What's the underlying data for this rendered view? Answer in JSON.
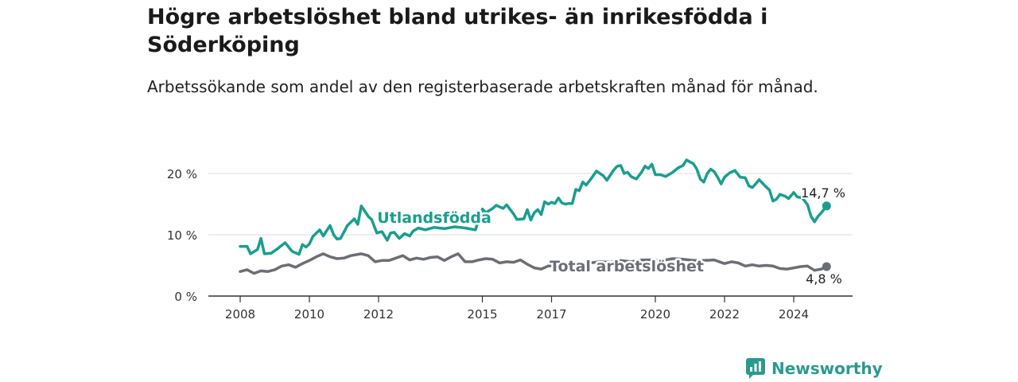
{
  "header": {
    "title": "Högre arbetslöshet bland utrikes- än inrikesfödda i Söderköping",
    "subtitle": "Arbetssökande som andel av den registerbaserade arbetskraften månad för månad."
  },
  "brand": {
    "name": "Newsworthy",
    "icon": "newsworthy-logo-icon",
    "color": "#2b9a8e"
  },
  "chart_data": {
    "type": "line",
    "title": "Högre arbetslöshet bland utrikes- än inrikesfödda i Söderköping",
    "subtitle": "Arbetssökande som andel av den registerbaserade arbetskraften månad för månad.",
    "xlabel": "",
    "ylabel": "",
    "xlim": [
      2008.0,
      2025.6
    ],
    "ylim": [
      0,
      22
    ],
    "x_ticks": [
      2008,
      2010,
      2012,
      2015,
      2017,
      2020,
      2022,
      2024
    ],
    "x_tick_labels": [
      "2008",
      "2010",
      "2012",
      "2015",
      "2017",
      "2020",
      "2022",
      "2024"
    ],
    "y_ticks": [
      0,
      10,
      20
    ],
    "y_tick_labels": [
      "0 %",
      "10 %",
      "20 %"
    ],
    "grid": "horizontal",
    "series": [
      {
        "name": "Utlandsfödda",
        "color": "#1a9e8f",
        "end_label": "14,7 %",
        "points": [
          [
            2008.0,
            8.1
          ],
          [
            2008.2,
            8.1
          ],
          [
            2008.3,
            6.9
          ],
          [
            2008.5,
            7.6
          ],
          [
            2008.6,
            9.4
          ],
          [
            2008.7,
            6.9
          ],
          [
            2008.9,
            7.0
          ],
          [
            2009.1,
            7.8
          ],
          [
            2009.3,
            8.7
          ],
          [
            2009.5,
            7.3
          ],
          [
            2009.7,
            6.8
          ],
          [
            2009.8,
            8.4
          ],
          [
            2009.9,
            8.0
          ],
          [
            2010.0,
            8.5
          ],
          [
            2010.1,
            9.7
          ],
          [
            2010.3,
            10.8
          ],
          [
            2010.4,
            9.8
          ],
          [
            2010.6,
            11.5
          ],
          [
            2010.7,
            10.0
          ],
          [
            2010.8,
            9.3
          ],
          [
            2010.9,
            9.4
          ],
          [
            2011.1,
            11.5
          ],
          [
            2011.3,
            12.6
          ],
          [
            2011.4,
            11.7
          ],
          [
            2011.5,
            14.7
          ],
          [
            2011.7,
            13.0
          ],
          [
            2011.8,
            12.5
          ],
          [
            2011.95,
            10.3
          ],
          [
            2012.1,
            10.5
          ],
          [
            2012.25,
            9.1
          ],
          [
            2012.35,
            10.3
          ],
          [
            2012.45,
            10.4
          ],
          [
            2012.6,
            9.4
          ],
          [
            2012.75,
            10.2
          ],
          [
            2012.9,
            9.8
          ],
          [
            2013.0,
            10.6
          ],
          [
            2013.15,
            11.1
          ],
          [
            2013.35,
            10.8
          ],
          [
            2013.6,
            11.2
          ],
          [
            2013.9,
            11.0
          ],
          [
            2014.2,
            11.3
          ],
          [
            2014.5,
            11.1
          ],
          [
            2014.8,
            10.8
          ],
          [
            2015.0,
            14.2
          ],
          [
            2015.1,
            13.6
          ],
          [
            2015.3,
            14.3
          ],
          [
            2015.4,
            14.8
          ],
          [
            2015.6,
            14.3
          ],
          [
            2015.7,
            14.9
          ],
          [
            2015.9,
            13.4
          ],
          [
            2016.0,
            12.5
          ],
          [
            2016.2,
            12.6
          ],
          [
            2016.3,
            14.1
          ],
          [
            2016.4,
            12.4
          ],
          [
            2016.5,
            13.6
          ],
          [
            2016.6,
            14.1
          ],
          [
            2016.7,
            13.3
          ],
          [
            2016.8,
            15.4
          ],
          [
            2016.9,
            15.0
          ],
          [
            2017.0,
            15.3
          ],
          [
            2017.1,
            15.1
          ],
          [
            2017.2,
            16.0
          ],
          [
            2017.3,
            15.2
          ],
          [
            2017.4,
            15.0
          ],
          [
            2017.5,
            15.1
          ],
          [
            2017.6,
            15.1
          ],
          [
            2017.7,
            17.4
          ],
          [
            2017.8,
            17.2
          ],
          [
            2017.9,
            18.6
          ],
          [
            2018.0,
            18.1
          ],
          [
            2018.15,
            19.2
          ],
          [
            2018.3,
            20.4
          ],
          [
            2018.5,
            19.6
          ],
          [
            2018.6,
            18.9
          ],
          [
            2018.8,
            20.6
          ],
          [
            2018.9,
            21.2
          ],
          [
            2019.0,
            21.3
          ],
          [
            2019.1,
            20.0
          ],
          [
            2019.2,
            20.2
          ],
          [
            2019.3,
            19.5
          ],
          [
            2019.45,
            19.1
          ],
          [
            2019.6,
            20.2
          ],
          [
            2019.7,
            21.2
          ],
          [
            2019.8,
            20.8
          ],
          [
            2019.9,
            21.5
          ],
          [
            2020.0,
            19.8
          ],
          [
            2020.15,
            19.8
          ],
          [
            2020.3,
            19.5
          ],
          [
            2020.5,
            20.2
          ],
          [
            2020.65,
            20.9
          ],
          [
            2020.8,
            21.3
          ],
          [
            2020.9,
            22.2
          ],
          [
            2021.1,
            21.6
          ],
          [
            2021.2,
            20.7
          ],
          [
            2021.3,
            19.1
          ],
          [
            2021.4,
            18.6
          ],
          [
            2021.5,
            20.0
          ],
          [
            2021.6,
            20.7
          ],
          [
            2021.7,
            20.3
          ],
          [
            2021.8,
            19.4
          ],
          [
            2021.9,
            18.3
          ],
          [
            2022.0,
            19.4
          ],
          [
            2022.15,
            20.1
          ],
          [
            2022.3,
            20.5
          ],
          [
            2022.45,
            19.4
          ],
          [
            2022.6,
            19.3
          ],
          [
            2022.7,
            18.0
          ],
          [
            2022.8,
            17.7
          ],
          [
            2022.9,
            18.3
          ],
          [
            2023.0,
            19.0
          ],
          [
            2023.15,
            18.1
          ],
          [
            2023.3,
            17.3
          ],
          [
            2023.4,
            15.5
          ],
          [
            2023.5,
            15.8
          ],
          [
            2023.6,
            16.6
          ],
          [
            2023.75,
            16.3
          ],
          [
            2023.85,
            15.9
          ],
          [
            2024.0,
            16.9
          ],
          [
            2024.1,
            16.2
          ],
          [
            2024.25,
            16.0
          ],
          [
            2024.4,
            14.9
          ],
          [
            2024.5,
            13.0
          ],
          [
            2024.6,
            12.1
          ],
          [
            2024.7,
            13.0
          ],
          [
            2024.8,
            13.6
          ],
          [
            2024.95,
            14.7
          ]
        ]
      },
      {
        "name": "Total arbetslöshet",
        "color": "#6b6e76",
        "end_label": "4,8 %",
        "points": [
          [
            2008.0,
            4.0
          ],
          [
            2008.2,
            4.3
          ],
          [
            2008.4,
            3.7
          ],
          [
            2008.6,
            4.1
          ],
          [
            2008.8,
            4.0
          ],
          [
            2009.0,
            4.3
          ],
          [
            2009.2,
            4.9
          ],
          [
            2009.4,
            5.1
          ],
          [
            2009.6,
            4.7
          ],
          [
            2009.8,
            5.3
          ],
          [
            2010.0,
            5.8
          ],
          [
            2010.2,
            6.4
          ],
          [
            2010.4,
            6.9
          ],
          [
            2010.6,
            6.4
          ],
          [
            2010.8,
            6.1
          ],
          [
            2011.0,
            6.2
          ],
          [
            2011.2,
            6.6
          ],
          [
            2011.5,
            6.9
          ],
          [
            2011.7,
            6.6
          ],
          [
            2011.9,
            5.6
          ],
          [
            2012.1,
            5.8
          ],
          [
            2012.3,
            5.8
          ],
          [
            2012.5,
            6.2
          ],
          [
            2012.7,
            6.6
          ],
          [
            2012.9,
            5.9
          ],
          [
            2013.1,
            6.2
          ],
          [
            2013.3,
            6.0
          ],
          [
            2013.5,
            6.3
          ],
          [
            2013.7,
            6.4
          ],
          [
            2013.9,
            5.8
          ],
          [
            2014.1,
            6.4
          ],
          [
            2014.3,
            6.9
          ],
          [
            2014.5,
            5.6
          ],
          [
            2014.7,
            5.6
          ],
          [
            2014.9,
            5.9
          ],
          [
            2015.1,
            6.1
          ],
          [
            2015.3,
            6.0
          ],
          [
            2015.5,
            5.4
          ],
          [
            2015.7,
            5.6
          ],
          [
            2015.9,
            5.5
          ],
          [
            2016.1,
            5.9
          ],
          [
            2016.3,
            5.2
          ],
          [
            2016.5,
            4.6
          ],
          [
            2016.7,
            4.4
          ],
          [
            2016.9,
            4.9
          ],
          [
            2017.1,
            5.0
          ],
          [
            2017.3,
            5.3
          ],
          [
            2017.5,
            5.4
          ],
          [
            2017.8,
            5.3
          ],
          [
            2018.1,
            5.4
          ],
          [
            2018.4,
            5.6
          ],
          [
            2018.7,
            5.5
          ],
          [
            2019.0,
            5.8
          ],
          [
            2019.3,
            5.6
          ],
          [
            2019.6,
            5.9
          ],
          [
            2019.9,
            5.9
          ],
          [
            2020.2,
            5.8
          ],
          [
            2020.5,
            6.1
          ],
          [
            2020.8,
            6.0
          ],
          [
            2021.1,
            5.8
          ],
          [
            2021.4,
            5.8
          ],
          [
            2021.7,
            5.9
          ],
          [
            2022.0,
            5.3
          ],
          [
            2022.2,
            5.6
          ],
          [
            2022.4,
            5.4
          ],
          [
            2022.6,
            4.9
          ],
          [
            2022.8,
            5.1
          ],
          [
            2023.0,
            4.9
          ],
          [
            2023.2,
            5.0
          ],
          [
            2023.4,
            4.9
          ],
          [
            2023.6,
            4.5
          ],
          [
            2023.8,
            4.4
          ],
          [
            2024.0,
            4.6
          ],
          [
            2024.2,
            4.8
          ],
          [
            2024.4,
            4.9
          ],
          [
            2024.6,
            4.2
          ],
          [
            2024.8,
            4.4
          ],
          [
            2024.95,
            4.8
          ]
        ]
      }
    ]
  }
}
